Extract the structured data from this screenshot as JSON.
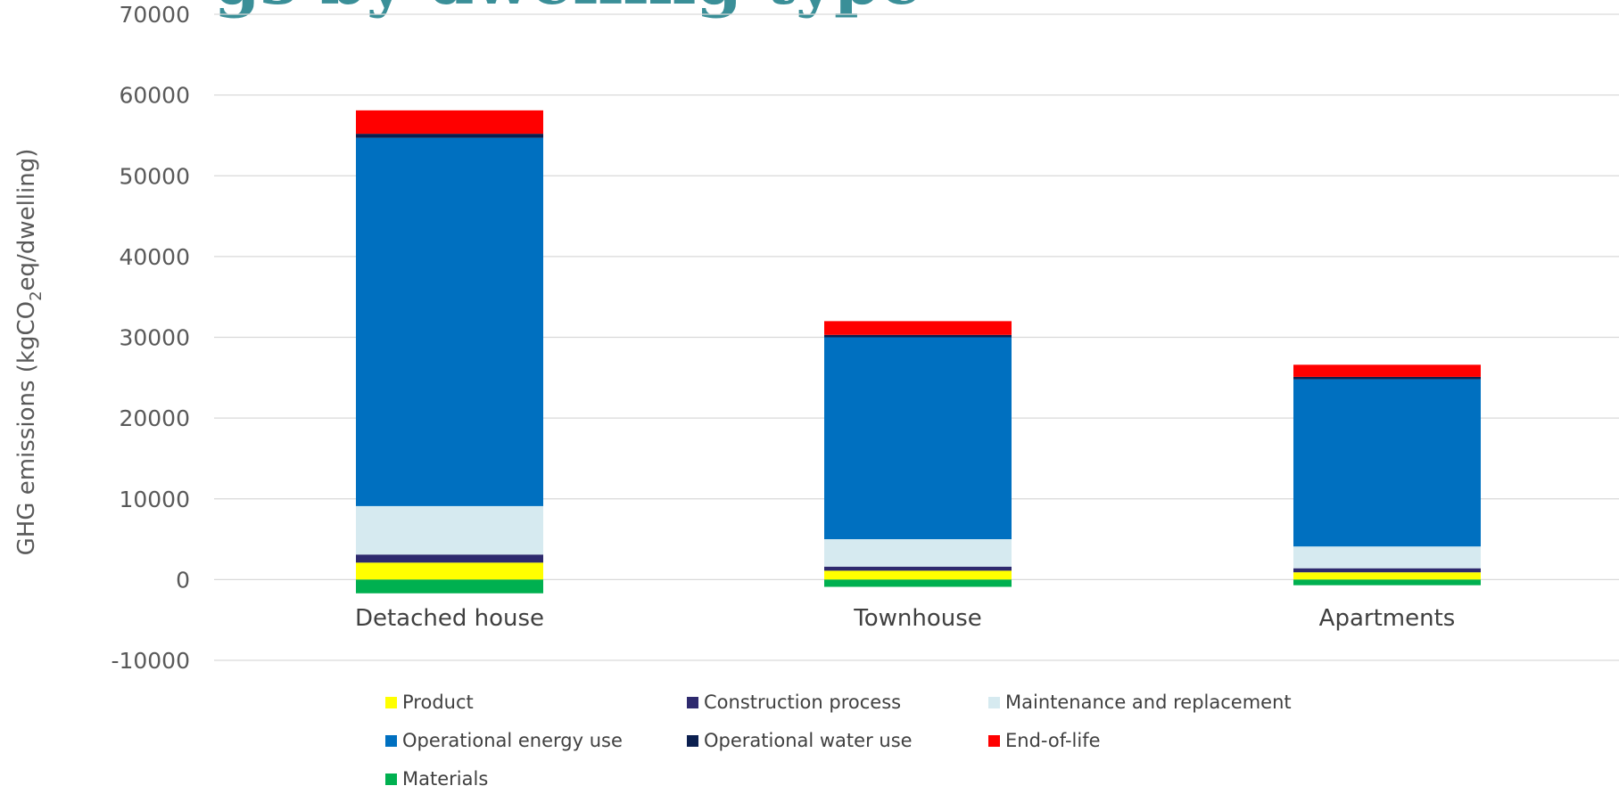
{
  "header": {
    "title_fragment": "gs by dwelling type"
  },
  "chart_data": {
    "type": "bar",
    "stacked": true,
    "categories": [
      "Detached house",
      "Townhouse",
      "Apartments"
    ],
    "ylabel": "GHG emissions (kgCO2eq/dwelling)",
    "ylim": [
      -10000,
      70000
    ],
    "yticks": [
      -10000,
      0,
      10000,
      20000,
      30000,
      40000,
      50000,
      60000,
      70000
    ],
    "grid": true,
    "legend_position": "bottom",
    "series": [
      {
        "name": "Product",
        "color": "#ffff00",
        "values": [
          2100,
          1100,
          900
        ]
      },
      {
        "name": "Construction process",
        "color": "#2e2a6e",
        "values": [
          1000,
          500,
          500
        ]
      },
      {
        "name": "Maintenance and replacement",
        "color": "#d6eaf0",
        "values": [
          6000,
          3400,
          2700
        ]
      },
      {
        "name": "Operational energy use",
        "color": "#0070c0",
        "values": [
          45600,
          25000,
          20700
        ]
      },
      {
        "name": "Operational water use",
        "color": "#0b1f4f",
        "values": [
          500,
          300,
          300
        ]
      },
      {
        "name": "End-of-life",
        "color": "#ff0000",
        "values": [
          2900,
          1700,
          1500
        ]
      },
      {
        "name": "Materials",
        "color": "#00b050",
        "values": [
          -1700,
          -900,
          -700
        ]
      }
    ]
  }
}
